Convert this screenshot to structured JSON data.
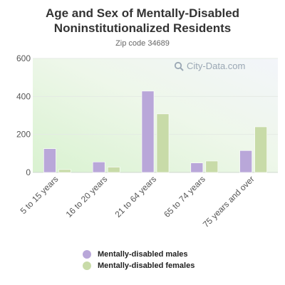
{
  "title": "Age and Sex of Mentally-Disabled Noninstitutionalized Residents",
  "subtitle": "Zip code 34689",
  "watermark": "City-Data.com",
  "colors": {
    "males": "#b9a7d9",
    "females": "#c8dba8"
  },
  "chart_data": {
    "type": "bar",
    "title": "Age and Sex of Mentally-Disabled Noninstitutionalized Residents",
    "subtitle": "Zip code 34689",
    "categories": [
      "5 to 15 years",
      "16 to 20 years",
      "21 to 64 years",
      "65 to 74 years",
      "75 years and over"
    ],
    "series": [
      {
        "name": "Mentally-disabled males",
        "values": [
          125,
          55,
          428,
          50,
          115
        ]
      },
      {
        "name": "Mentally-disabled females",
        "values": [
          15,
          28,
          308,
          60,
          240
        ]
      }
    ],
    "yticks": [
      "0",
      "200",
      "400",
      "600"
    ],
    "ylim": [
      0,
      600
    ],
    "xlabel": "",
    "ylabel": "",
    "grid": true,
    "legend": "bottom"
  }
}
